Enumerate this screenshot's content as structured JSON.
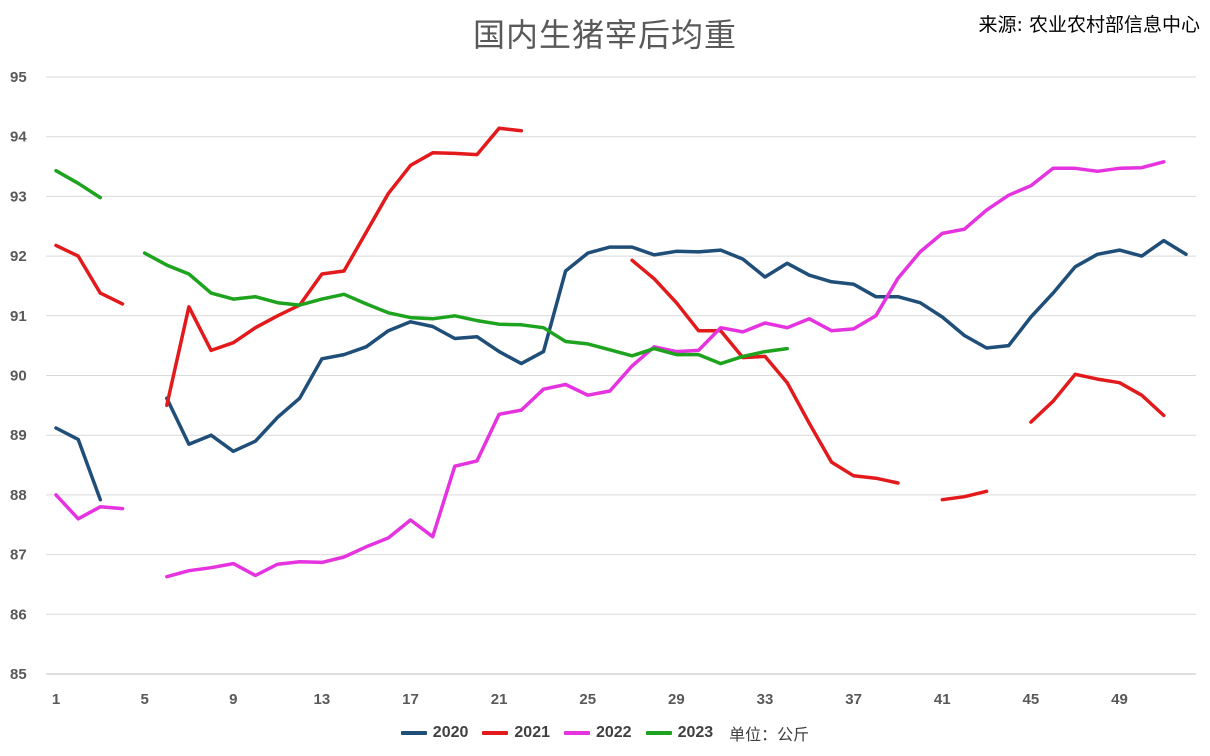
{
  "chart_data": {
    "type": "line",
    "title": "国内生猪宰后均重",
    "source": "来源: 农业农村部信息中心",
    "unit": "单位：公斤",
    "xlabel": "",
    "ylabel": "",
    "ylim": [
      85,
      95
    ],
    "yticks": [
      85,
      86,
      87,
      88,
      89,
      90,
      91,
      92,
      93,
      94,
      95
    ],
    "xlim": [
      1,
      52
    ],
    "xticks": [
      1,
      5,
      9,
      13,
      17,
      21,
      25,
      29,
      33,
      37,
      41,
      45,
      49
    ],
    "grid": true,
    "legend_position": "bottom",
    "series": [
      {
        "name": "2020",
        "color": "#1F4E79",
        "segments": [
          [
            [
              1,
              89.12
            ],
            [
              2,
              88.93
            ],
            [
              3,
              87.92
            ]
          ],
          [
            [
              6,
              89.62
            ],
            [
              7,
              88.85
            ],
            [
              8,
              89.0
            ],
            [
              9,
              88.73
            ],
            [
              10,
              88.9
            ],
            [
              11,
              89.3
            ],
            [
              12,
              89.62
            ],
            [
              13,
              90.28
            ],
            [
              14,
              90.35
            ],
            [
              15,
              90.48
            ],
            [
              16,
              90.75
            ],
            [
              17,
              90.9
            ],
            [
              18,
              90.82
            ],
            [
              19,
              90.62
            ],
            [
              20,
              90.65
            ],
            [
              21,
              90.4
            ],
            [
              22,
              90.2
            ],
            [
              23,
              90.4
            ],
            [
              24,
              91.75
            ],
            [
              25,
              92.05
            ],
            [
              26,
              92.15
            ],
            [
              27,
              92.15
            ],
            [
              28,
              92.02
            ],
            [
              29,
              92.08
            ],
            [
              30,
              92.07
            ],
            [
              31,
              92.1
            ],
            [
              32,
              91.95
            ],
            [
              33,
              91.65
            ],
            [
              34,
              91.88
            ],
            [
              35,
              91.68
            ],
            [
              36,
              91.57
            ],
            [
              37,
              91.53
            ],
            [
              38,
              91.32
            ],
            [
              39,
              91.32
            ],
            [
              40,
              91.22
            ],
            [
              41,
              90.98
            ],
            [
              42,
              90.67
            ],
            [
              43,
              90.46
            ],
            [
              44,
              90.5
            ],
            [
              45,
              90.98
            ],
            [
              46,
              91.38
            ],
            [
              47,
              91.82
            ],
            [
              48,
              92.03
            ],
            [
              49,
              92.1
            ],
            [
              50,
              92.0
            ],
            [
              51,
              92.26
            ],
            [
              52,
              92.03
            ]
          ]
        ]
      },
      {
        "name": "2021",
        "color": "#E31A1C",
        "segments": [
          [
            [
              1,
              92.18
            ],
            [
              2,
              92.0
            ],
            [
              3,
              91.38
            ],
            [
              4,
              91.2
            ]
          ],
          [
            [
              6,
              89.5
            ],
            [
              7,
              91.15
            ],
            [
              8,
              90.42
            ],
            [
              9,
              90.55
            ],
            [
              10,
              90.8
            ],
            [
              11,
              91.0
            ],
            [
              12,
              91.18
            ],
            [
              13,
              91.7
            ],
            [
              14,
              91.75
            ],
            [
              15,
              92.4
            ],
            [
              16,
              93.05
            ],
            [
              17,
              93.52
            ],
            [
              18,
              93.73
            ],
            [
              19,
              93.72
            ],
            [
              20,
              93.7
            ],
            [
              21,
              94.14
            ],
            [
              22,
              94.1
            ]
          ],
          [
            [
              27,
              91.93
            ],
            [
              28,
              91.62
            ],
            [
              29,
              91.22
            ],
            [
              30,
              90.75
            ],
            [
              31,
              90.75
            ],
            [
              32,
              90.3
            ],
            [
              33,
              90.32
            ],
            [
              34,
              89.88
            ],
            [
              35,
              89.2
            ],
            [
              36,
              88.55
            ],
            [
              37,
              88.32
            ],
            [
              38,
              88.28
            ],
            [
              39,
              88.2
            ]
          ],
          [
            [
              41,
              87.92
            ],
            [
              42,
              87.97
            ],
            [
              43,
              88.06
            ]
          ],
          [
            [
              45,
              89.22
            ],
            [
              46,
              89.57
            ],
            [
              47,
              90.02
            ],
            [
              48,
              89.94
            ],
            [
              49,
              89.88
            ],
            [
              50,
              89.67
            ],
            [
              51,
              89.33
            ]
          ]
        ]
      },
      {
        "name": "2022",
        "color": "#E533E0",
        "segments": [
          [
            [
              1,
              88.0
            ],
            [
              2,
              87.6
            ],
            [
              3,
              87.8
            ],
            [
              4,
              87.77
            ]
          ],
          [
            [
              6,
              86.63
            ],
            [
              7,
              86.73
            ],
            [
              8,
              86.78
            ],
            [
              9,
              86.85
            ],
            [
              10,
              86.65
            ],
            [
              11,
              86.84
            ],
            [
              12,
              86.88
            ],
            [
              13,
              86.87
            ],
            [
              14,
              86.96
            ],
            [
              15,
              87.13
            ],
            [
              16,
              87.28
            ],
            [
              17,
              87.58
            ],
            [
              18,
              87.3
            ],
            [
              19,
              88.48
            ],
            [
              20,
              88.57
            ],
            [
              21,
              89.35
            ],
            [
              22,
              89.42
            ],
            [
              23,
              89.77
            ],
            [
              24,
              89.85
            ],
            [
              25,
              89.67
            ],
            [
              26,
              89.74
            ],
            [
              27,
              90.16
            ],
            [
              28,
              90.48
            ],
            [
              29,
              90.4
            ],
            [
              30,
              90.42
            ],
            [
              31,
              90.8
            ],
            [
              32,
              90.73
            ],
            [
              33,
              90.88
            ],
            [
              34,
              90.8
            ],
            [
              35,
              90.95
            ],
            [
              36,
              90.75
            ],
            [
              37,
              90.78
            ],
            [
              38,
              91.0
            ],
            [
              39,
              91.63
            ],
            [
              40,
              92.07
            ],
            [
              41,
              92.38
            ],
            [
              42,
              92.45
            ],
            [
              43,
              92.77
            ],
            [
              44,
              93.02
            ],
            [
              45,
              93.18
            ],
            [
              46,
              93.47
            ],
            [
              47,
              93.47
            ],
            [
              48,
              93.42
            ],
            [
              49,
              93.47
            ],
            [
              50,
              93.48
            ],
            [
              51,
              93.58
            ]
          ]
        ]
      },
      {
        "name": "2023",
        "color": "#1EA31E",
        "segments": [
          [
            [
              1,
              93.43
            ],
            [
              2,
              93.22
            ],
            [
              3,
              92.98
            ]
          ],
          [
            [
              5,
              92.05
            ],
            [
              6,
              91.85
            ],
            [
              7,
              91.7
            ],
            [
              8,
              91.38
            ],
            [
              9,
              91.28
            ],
            [
              10,
              91.32
            ],
            [
              11,
              91.22
            ],
            [
              12,
              91.18
            ],
            [
              13,
              91.28
            ],
            [
              14,
              91.36
            ],
            [
              15,
              91.2
            ],
            [
              16,
              91.05
            ],
            [
              17,
              90.97
            ],
            [
              18,
              90.95
            ],
            [
              19,
              91.0
            ],
            [
              20,
              90.92
            ],
            [
              21,
              90.86
            ],
            [
              22,
              90.85
            ],
            [
              23,
              90.8
            ],
            [
              24,
              90.57
            ],
            [
              25,
              90.53
            ],
            [
              26,
              90.43
            ],
            [
              27,
              90.33
            ],
            [
              28,
              90.45
            ],
            [
              29,
              90.35
            ],
            [
              30,
              90.35
            ],
            [
              31,
              90.2
            ],
            [
              32,
              90.32
            ],
            [
              33,
              90.4
            ],
            [
              34,
              90.45
            ]
          ]
        ]
      }
    ]
  }
}
